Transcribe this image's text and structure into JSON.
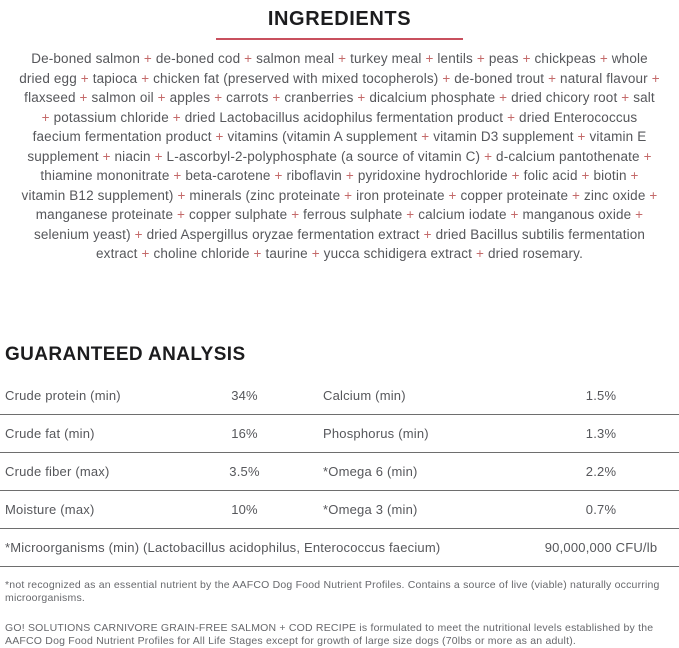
{
  "ingredients": {
    "title": "INGREDIENTS",
    "separator": "+",
    "items": [
      "De-boned salmon",
      "de-boned cod",
      "salmon meal",
      "turkey meal",
      "lentils",
      "peas",
      "chickpeas",
      "whole dried egg",
      "tapioca",
      "chicken fat (preserved with mixed tocopherols)",
      "de-boned trout",
      "natural flavour",
      "flaxseed",
      "salmon oil",
      "apples",
      "carrots",
      "cranberries",
      "dicalcium phosphate",
      "dried chicory root",
      "salt",
      "potassium chloride",
      "dried Lactobacillus acidophilus fermentation product",
      "dried Enterococcus faecium fermentation product",
      "vitamins (vitamin A supplement",
      "vitamin D3 supplement",
      "vitamin E supplement",
      "niacin",
      "L-ascorbyl-2-polyphosphate (a source of vitamin C)",
      "d-calcium pantothenate",
      "thiamine mononitrate",
      "beta-carotene",
      "riboflavin",
      "pyridoxine hydrochloride",
      "folic acid",
      "biotin",
      "vitamin B12 supplement)",
      "minerals (zinc proteinate",
      "iron proteinate",
      "copper proteinate",
      "zinc oxide",
      "manganese proteinate",
      "copper sulphate",
      "ferrous sulphate",
      "calcium iodate",
      "manganous oxide",
      "selenium yeast)",
      "dried Aspergillus oryzae fermentation extract",
      "dried Bacillus subtilis fermentation extract",
      "choline chloride",
      "taurine",
      "yucca schidigera extract",
      "dried rosemary."
    ]
  },
  "guaranteed_analysis": {
    "title": "GUARANTEED ANALYSIS",
    "rows": [
      [
        "Crude protein (min)",
        "34%",
        "Calcium (min)",
        "1.5%"
      ],
      [
        "Crude fat (min)",
        "16%",
        "Phosphorus (min)",
        "1.3%"
      ],
      [
        "Crude fiber (max)",
        "3.5%",
        "*Omega 6 (min)",
        "2.2%"
      ],
      [
        "Moisture (max)",
        "10%",
        "*Omega 3 (min)",
        "0.7%"
      ]
    ],
    "microorganisms_row": {
      "label": "*Microorganisms (min) (Lactobacillus acidophilus, Enterococcus faecium)",
      "value": "90,000,000 CFU/lb"
    }
  },
  "footnotes": {
    "note1": "*not recognized as an essential nutrient by the AAFCO Dog Food Nutrient Profiles. Contains a source of live (viable) naturally occurring microorganisms.",
    "note2": "GO! SOLUTIONS CARNIVORE GRAIN-FREE SALMON + COD RECIPE  is formulated to meet the nutritional levels established by the AAFCO Dog Food Nutrient Profiles for All Life Stages except for growth of large size dogs (70lbs or more as an adult)."
  },
  "colors": {
    "accent_red": "#c8505e",
    "plus_red": "#c46a6a",
    "heading_text": "#1c1c1e",
    "body_text": "#56575b",
    "table_rule": "#6e6e6e",
    "footnote_text": "#67686c"
  }
}
